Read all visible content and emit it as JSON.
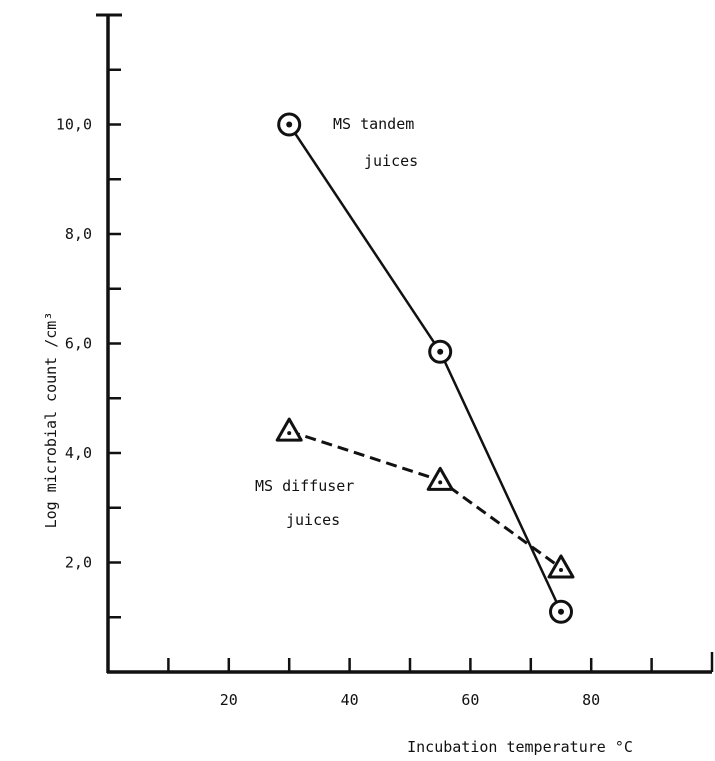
{
  "chart_data": {
    "type": "line",
    "title": "",
    "xlabel": "Incubation temperature °C",
    "ylabel": "Log microbial count /cm³",
    "xlim": [
      0,
      100
    ],
    "ylim": [
      0,
      12
    ],
    "x_ticks": [
      10,
      20,
      30,
      40,
      50,
      60,
      70,
      80,
      90
    ],
    "x_tick_labels": [
      "20",
      "40",
      "60",
      "80"
    ],
    "x_tick_label_values": [
      20,
      40,
      60,
      80
    ],
    "y_ticks": [
      1,
      2,
      3,
      4,
      5,
      6,
      7,
      8,
      9,
      10,
      11
    ],
    "y_tick_labels": [
      "2,0",
      "4,0",
      "6,0",
      "8,0",
      "10,0"
    ],
    "y_tick_label_values": [
      2,
      4,
      6,
      8,
      10
    ],
    "grid": false,
    "series": [
      {
        "name": "MS tandem juices",
        "label_lines": [
          "MS tandem",
          "juices"
        ],
        "marker": "circle-dot",
        "line_style": "solid",
        "x": [
          30,
          55,
          75
        ],
        "y": [
          10.0,
          5.85,
          1.1
        ]
      },
      {
        "name": "MS diffuser juices",
        "label_lines": [
          "MS diffuser",
          "juices"
        ],
        "marker": "triangle-dot",
        "line_style": "dashed",
        "x": [
          30,
          55,
          75
        ],
        "y": [
          4.4,
          3.5,
          1.9
        ]
      }
    ]
  }
}
